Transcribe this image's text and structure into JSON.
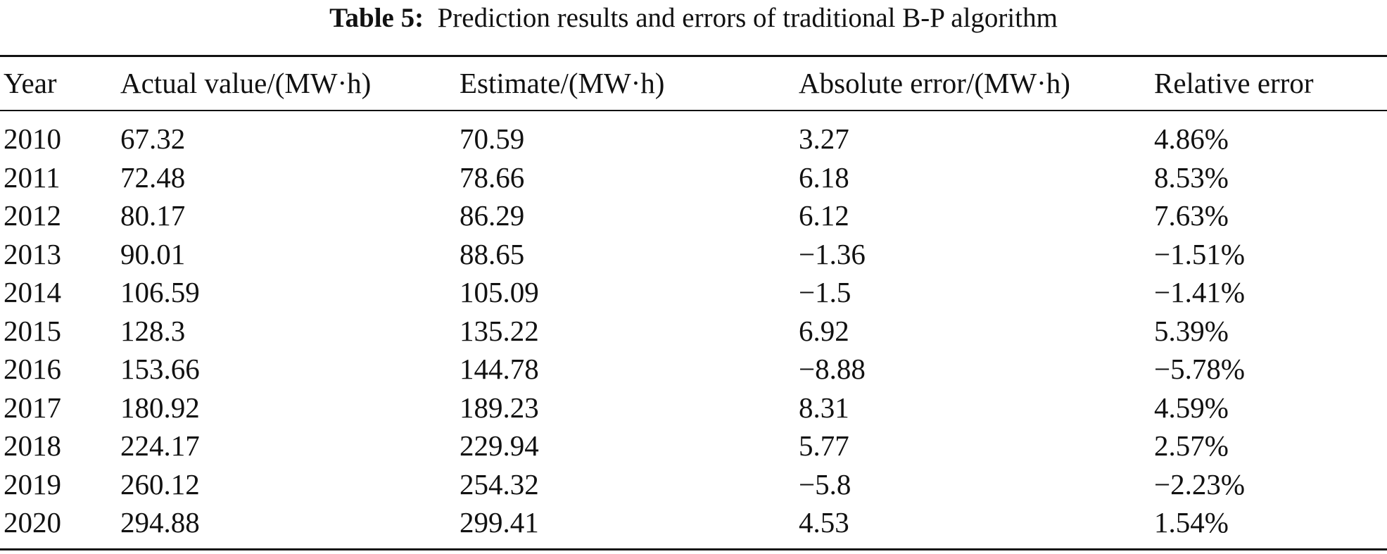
{
  "caption": {
    "label": "Table 5:",
    "text": "Prediction results and errors of traditional B-P algorithm"
  },
  "table": {
    "headers": [
      "Year",
      "Actual value/(MW·h)",
      "Estimate/(MW·h)",
      "Absolute error/(MW·h)",
      "Relative error"
    ],
    "rows": [
      [
        "2010",
        "67.32",
        "70.59",
        "3.27",
        "4.86%"
      ],
      [
        "2011",
        "72.48",
        "78.66",
        "6.18",
        "8.53%"
      ],
      [
        "2012",
        "80.17",
        "86.29",
        "6.12",
        "7.63%"
      ],
      [
        "2013",
        "90.01",
        "88.65",
        "−1.36",
        "−1.51%"
      ],
      [
        "2014",
        "106.59",
        "105.09",
        "−1.5",
        "−1.41%"
      ],
      [
        "2015",
        "128.3",
        "135.22",
        "6.92",
        "5.39%"
      ],
      [
        "2016",
        "153.66",
        "144.78",
        "−8.88",
        "−5.78%"
      ],
      [
        "2017",
        "180.92",
        "189.23",
        "8.31",
        "4.59%"
      ],
      [
        "2018",
        "224.17",
        "229.94",
        "5.77",
        "2.57%"
      ],
      [
        "2019",
        "260.12",
        "254.32",
        "−5.8",
        "−2.23%"
      ],
      [
        "2020",
        "294.88",
        "299.41",
        "4.53",
        "1.54%"
      ]
    ]
  }
}
